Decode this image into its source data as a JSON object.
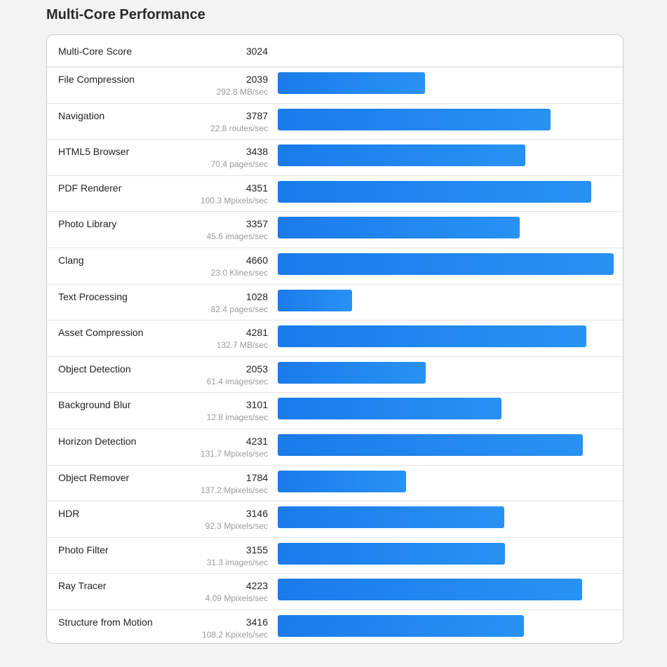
{
  "page": {
    "title": "Multi-Core Performance"
  },
  "summary": {
    "label": "Multi-Core Score",
    "score": "3024"
  },
  "colors": {
    "bar_start": "#1a7bea",
    "bar_end": "#2892f3",
    "background": "#f3f3f3"
  },
  "max_score": 4660,
  "rows": [
    {
      "name": "File Compression",
      "score": "2039",
      "rate": "292.8 MB/sec"
    },
    {
      "name": "Navigation",
      "score": "3787",
      "rate": "22.8 routes/sec"
    },
    {
      "name": "HTML5 Browser",
      "score": "3438",
      "rate": "70.4 pages/sec"
    },
    {
      "name": "PDF Renderer",
      "score": "4351",
      "rate": "100.3 Mpixels/sec"
    },
    {
      "name": "Photo Library",
      "score": "3357",
      "rate": "45.6 images/sec"
    },
    {
      "name": "Clang",
      "score": "4660",
      "rate": "23.0 Klines/sec"
    },
    {
      "name": "Text Processing",
      "score": "1028",
      "rate": "82.4 pages/sec"
    },
    {
      "name": "Asset Compression",
      "score": "4281",
      "rate": "132.7 MB/sec"
    },
    {
      "name": "Object Detection",
      "score": "2053",
      "rate": "61.4 images/sec"
    },
    {
      "name": "Background Blur",
      "score": "3101",
      "rate": "12.8 images/sec"
    },
    {
      "name": "Horizon Detection",
      "score": "4231",
      "rate": "131.7 Mpixels/sec"
    },
    {
      "name": "Object Remover",
      "score": "1784",
      "rate": "137.2 Mpixels/sec"
    },
    {
      "name": "HDR",
      "score": "3146",
      "rate": "92.3 Mpixels/sec"
    },
    {
      "name": "Photo Filter",
      "score": "3155",
      "rate": "31.3 images/sec"
    },
    {
      "name": "Ray Tracer",
      "score": "4223",
      "rate": "4.09 Mpixels/sec"
    },
    {
      "name": "Structure from Motion",
      "score": "3416",
      "rate": "108.2 Kpixels/sec"
    }
  ]
}
